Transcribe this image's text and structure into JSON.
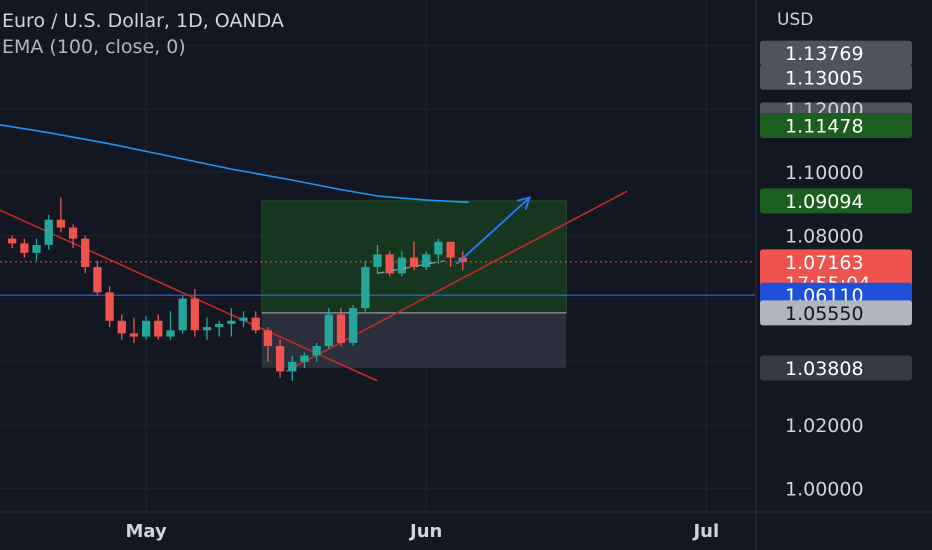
{
  "header": {
    "title": "Euro / U.S. Dollar, 1D, OANDA",
    "indicator": "EMA (100, close, 0)"
  },
  "colors": {
    "background": "#131722",
    "grid": "#1e222d",
    "text": "#d1d4dc",
    "up": "#26a69a",
    "down": "#ef5350",
    "ema": "#2196f3",
    "trendline": "#c62828",
    "arrow": "#2979ff",
    "hline": "#2962ff"
  },
  "chart_data": {
    "type": "candlestick",
    "symbol": "Euro / U.S. Dollar",
    "interval": "1D",
    "exchange": "OANDA",
    "currency_label": "USD",
    "ylim": [
      0.9925,
      1.1545
    ],
    "y_ticks": [
      {
        "value": 1.12,
        "label": "1.12000"
      },
      {
        "value": 1.1,
        "label": "1.10000"
      },
      {
        "value": 1.08,
        "label": "1.08000"
      },
      {
        "value": 1.02,
        "label": "1.02000"
      },
      {
        "value": 1.0,
        "label": "1.00000"
      }
    ],
    "x_ticks": [
      {
        "index": 11,
        "label": "May"
      },
      {
        "index": 34,
        "label": "Jun"
      },
      {
        "index": 57,
        "label": "Jul"
      }
    ],
    "x_range": [
      -1,
      61
    ],
    "grid_x_indices": [
      11,
      34,
      57
    ],
    "candles": [
      {
        "o": 1.079,
        "h": 1.08,
        "l": 1.076,
        "c": 1.0775
      },
      {
        "o": 1.0775,
        "h": 1.079,
        "l": 1.073,
        "c": 1.0745
      },
      {
        "o": 1.0745,
        "h": 1.079,
        "l": 1.072,
        "c": 1.077
      },
      {
        "o": 1.077,
        "h": 1.0865,
        "l": 1.0755,
        "c": 1.085
      },
      {
        "o": 1.085,
        "h": 1.092,
        "l": 1.081,
        "c": 1.0825
      },
      {
        "o": 1.0825,
        "h": 1.0835,
        "l": 1.076,
        "c": 1.079
      },
      {
        "o": 1.079,
        "h": 1.08,
        "l": 1.068,
        "c": 1.07
      },
      {
        "o": 1.07,
        "h": 1.072,
        "l": 1.061,
        "c": 1.062
      },
      {
        "o": 1.062,
        "h": 1.064,
        "l": 1.051,
        "c": 1.053
      },
      {
        "o": 1.053,
        "h": 1.055,
        "l": 1.047,
        "c": 1.049
      },
      {
        "o": 1.049,
        "h": 1.054,
        "l": 1.046,
        "c": 1.048
      },
      {
        "o": 1.048,
        "h": 1.0545,
        "l": 1.047,
        "c": 1.053
      },
      {
        "o": 1.053,
        "h": 1.055,
        "l": 1.047,
        "c": 1.048
      },
      {
        "o": 1.048,
        "h": 1.056,
        "l": 1.047,
        "c": 1.05
      },
      {
        "o": 1.05,
        "h": 1.061,
        "l": 1.049,
        "c": 1.06
      },
      {
        "o": 1.06,
        "h": 1.063,
        "l": 1.048,
        "c": 1.05
      },
      {
        "o": 1.05,
        "h": 1.054,
        "l": 1.047,
        "c": 1.051
      },
      {
        "o": 1.051,
        "h": 1.053,
        "l": 1.048,
        "c": 1.052
      },
      {
        "o": 1.052,
        "h": 1.057,
        "l": 1.048,
        "c": 1.053
      },
      {
        "o": 1.053,
        "h": 1.056,
        "l": 1.051,
        "c": 1.054
      },
      {
        "o": 1.054,
        "h": 1.056,
        "l": 1.049,
        "c": 1.05
      },
      {
        "o": 1.05,
        "h": 1.051,
        "l": 1.04,
        "c": 1.045
      },
      {
        "o": 1.045,
        "h": 1.047,
        "l": 1.035,
        "c": 1.037
      },
      {
        "o": 1.037,
        "h": 1.042,
        "l": 1.034,
        "c": 1.04
      },
      {
        "o": 1.04,
        "h": 1.043,
        "l": 1.038,
        "c": 1.042
      },
      {
        "o": 1.042,
        "h": 1.046,
        "l": 1.04,
        "c": 1.045
      },
      {
        "o": 1.045,
        "h": 1.057,
        "l": 1.044,
        "c": 1.055
      },
      {
        "o": 1.055,
        "h": 1.057,
        "l": 1.045,
        "c": 1.046
      },
      {
        "o": 1.046,
        "h": 1.058,
        "l": 1.045,
        "c": 1.057
      },
      {
        "o": 1.057,
        "h": 1.072,
        "l": 1.056,
        "c": 1.07
      },
      {
        "o": 1.07,
        "h": 1.077,
        "l": 1.068,
        "c": 1.074
      },
      {
        "o": 1.074,
        "h": 1.075,
        "l": 1.067,
        "c": 1.068
      },
      {
        "o": 1.068,
        "h": 1.075,
        "l": 1.067,
        "c": 1.073
      },
      {
        "o": 1.073,
        "h": 1.078,
        "l": 1.069,
        "c": 1.07
      },
      {
        "o": 1.07,
        "h": 1.075,
        "l": 1.069,
        "c": 1.074
      },
      {
        "o": 1.074,
        "h": 1.079,
        "l": 1.071,
        "c": 1.078
      },
      {
        "o": 1.078,
        "h": 1.078,
        "l": 1.07,
        "c": 1.073
      },
      {
        "o": 1.073,
        "h": 1.075,
        "l": 1.069,
        "c": 1.0716
      }
    ],
    "ema_series": [
      {
        "x": -1,
        "y": 1.115
      },
      {
        "x": 3,
        "y": 1.1125
      },
      {
        "x": 8,
        "y": 1.109
      },
      {
        "x": 13,
        "y": 1.105
      },
      {
        "x": 18,
        "y": 1.101
      },
      {
        "x": 23,
        "y": 1.0975
      },
      {
        "x": 27,
        "y": 1.0945
      },
      {
        "x": 30,
        "y": 1.0925
      },
      {
        "x": 34,
        "y": 1.0912
      },
      {
        "x": 37.5,
        "y": 1.0905
      }
    ],
    "price_labels": [
      {
        "value": 1.13769,
        "label": "1.13769",
        "style": "gray"
      },
      {
        "value": 1.13005,
        "label": "1.13005",
        "style": "gray"
      },
      {
        "value": 1.12,
        "label": "1.12000",
        "style": "gray-partial"
      },
      {
        "value": 1.11478,
        "label": "1.11478",
        "style": "green"
      },
      {
        "value": 1.09094,
        "label": "1.09094",
        "style": "green"
      },
      {
        "value": 1.07163,
        "label": "1.07163",
        "style": "red",
        "sub": "17:55:04"
      },
      {
        "value": 1.0611,
        "label": "1.06110",
        "style": "blue"
      },
      {
        "value": 1.0555,
        "label": "1.05550",
        "style": "lightgray"
      },
      {
        "value": 1.03808,
        "label": "1.03808",
        "style": "darkgray"
      }
    ],
    "current_price": 1.07163,
    "hline": 1.0611,
    "position": {
      "x_start": 20.5,
      "x_end": 45.5,
      "entry": 1.0555,
      "target": 1.09094,
      "stop": 1.03808
    },
    "trendlines": [
      {
        "x1": -1,
        "y1": 1.088,
        "x2": 30,
        "y2": 1.034
      },
      {
        "x1": 22.5,
        "y1": 1.037,
        "x2": 50.5,
        "y2": 1.094
      }
    ],
    "dashed_line": {
      "x1": 30,
      "y1": 1.068,
      "x2": 35.5,
      "y2": 1.072
    },
    "arrow": {
      "x1": 36.5,
      "y1": 1.071,
      "x2": 42.5,
      "y2": 1.092
    }
  }
}
